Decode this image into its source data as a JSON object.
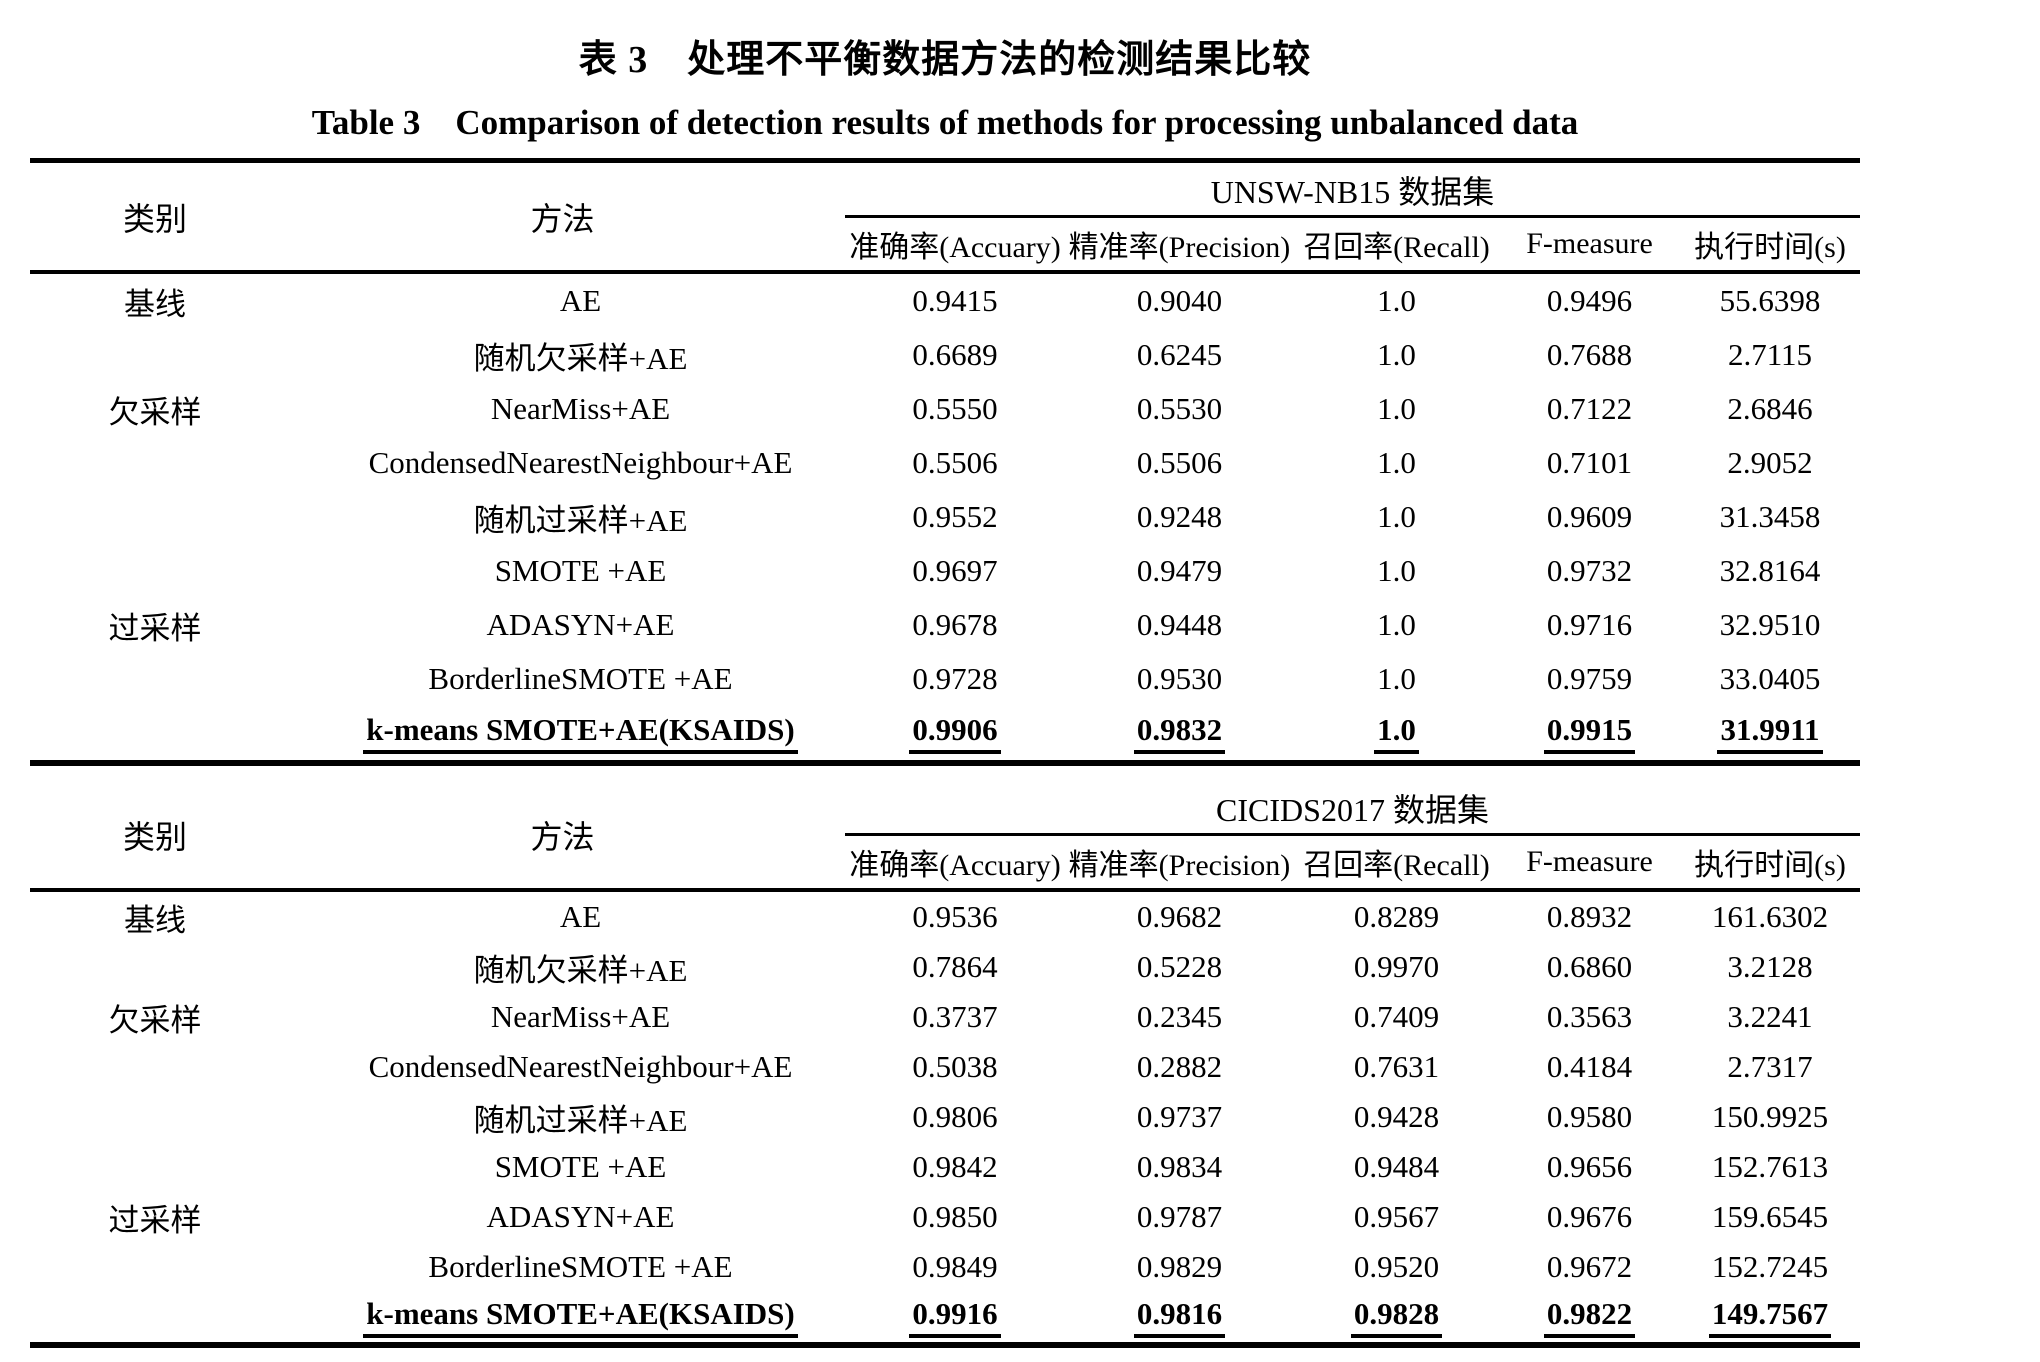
{
  "document": {
    "caption_zh": "表 3 处理不平衡数据方法的检测结果比较",
    "caption_en": "Table 3 Comparison of detection results of methods for processing unbalanced data"
  },
  "table": {
    "col_category": "类别",
    "col_method": "方法",
    "metric_headers": [
      "准确率(Accuary)",
      "精准率(Precision)",
      "召回率(Recall)",
      "F-measure",
      "执行时间(s)"
    ],
    "sections": [
      {
        "dataset": "UNSW-NB15 数据集",
        "rows": [
          {
            "category": "基线",
            "method": "AE",
            "values": [
              "0.9415",
              "0.9040",
              "1.0",
              "0.9496",
              "55.6398"
            ]
          },
          {
            "category": "",
            "method": "随机欠采样+AE",
            "values": [
              "0.6689",
              "0.6245",
              "1.0",
              "0.7688",
              "2.7115"
            ]
          },
          {
            "category": "欠采样",
            "method": "NearMiss+AE",
            "values": [
              "0.5550",
              "0.5530",
              "1.0",
              "0.7122",
              "2.6846"
            ]
          },
          {
            "category": "",
            "method": "CondensedNearestNeighbour+AE",
            "values": [
              "0.5506",
              "0.5506",
              "1.0",
              "0.7101",
              "2.9052"
            ]
          },
          {
            "category": "",
            "method": "随机过采样+AE",
            "values": [
              "0.9552",
              "0.9248",
              "1.0",
              "0.9609",
              "31.3458"
            ]
          },
          {
            "category": "",
            "method": "SMOTE +AE",
            "values": [
              "0.9697",
              "0.9479",
              "1.0",
              "0.9732",
              "32.8164"
            ]
          },
          {
            "category": "过采样",
            "method": "ADASYN+AE",
            "values": [
              "0.9678",
              "0.9448",
              "1.0",
              "0.9716",
              "32.9510"
            ]
          },
          {
            "category": "",
            "method": "BorderlineSMOTE +AE",
            "values": [
              "0.9728",
              "0.9530",
              "1.0",
              "0.9759",
              "33.0405"
            ]
          },
          {
            "category": "",
            "method": "k-means SMOTE+AE(KSAIDS)",
            "values": [
              "0.9906",
              "0.9832",
              "1.0",
              "0.9915",
              "31.9911"
            ]
          }
        ]
      },
      {
        "dataset": "CICIDS2017 数据集",
        "rows": [
          {
            "category": "基线",
            "method": "AE",
            "values": [
              "0.9536",
              "0.9682",
              "0.8289",
              "0.8932",
              "161.6302"
            ]
          },
          {
            "category": "",
            "method": "随机欠采样+AE",
            "values": [
              "0.7864",
              "0.5228",
              "0.9970",
              "0.6860",
              "3.2128"
            ]
          },
          {
            "category": "欠采样",
            "method": "NearMiss+AE",
            "values": [
              "0.3737",
              "0.2345",
              "0.7409",
              "0.3563",
              "3.2241"
            ]
          },
          {
            "category": "",
            "method": "CondensedNearestNeighbour+AE",
            "values": [
              "0.5038",
              "0.2882",
              "0.7631",
              "0.4184",
              "2.7317"
            ]
          },
          {
            "category": "",
            "method": "随机过采样+AE",
            "values": [
              "0.9806",
              "0.9737",
              "0.9428",
              "0.9580",
              "150.9925"
            ]
          },
          {
            "category": "",
            "method": "SMOTE +AE",
            "values": [
              "0.9842",
              "0.9834",
              "0.9484",
              "0.9656",
              "152.7613"
            ]
          },
          {
            "category": "过采样",
            "method": "ADASYN+AE",
            "values": [
              "0.9850",
              "0.9787",
              "0.9567",
              "0.9676",
              "159.6545"
            ]
          },
          {
            "category": "",
            "method": "BorderlineSMOTE +AE",
            "values": [
              "0.9849",
              "0.9829",
              "0.9520",
              "0.9672",
              "152.7245"
            ]
          },
          {
            "category": "",
            "method": "k-means SMOTE+AE(KSAIDS)",
            "values": [
              "0.9916",
              "0.9816",
              "0.9828",
              "0.9822",
              "149.7567"
            ]
          }
        ]
      }
    ]
  }
}
